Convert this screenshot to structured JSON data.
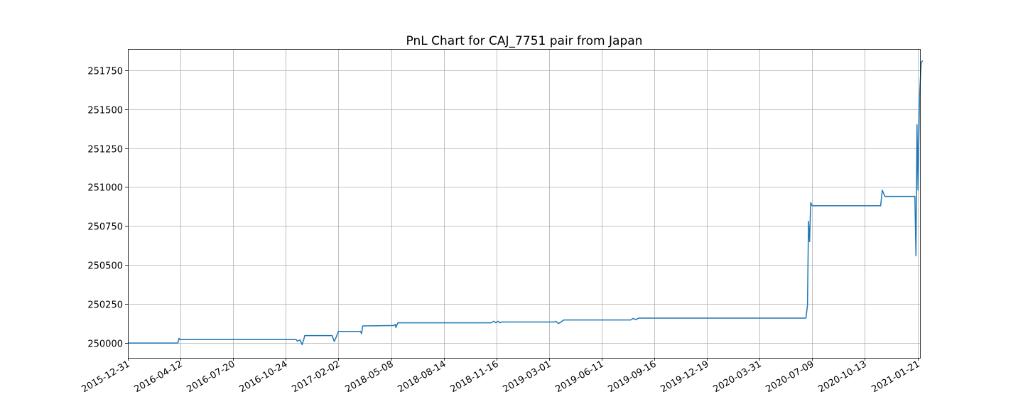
{
  "chart_data": {
    "type": "line",
    "title": "PnL Chart for CAJ_7751 pair from Japan",
    "xlabel": "",
    "ylabel": "",
    "grid": true,
    "xlim": [
      "2015-12-31",
      "2021-02-02"
    ],
    "ylim": [
      249905,
      251885
    ],
    "x_ticks": [
      "2015-12-31",
      "2016-04-12",
      "2016-07-20",
      "2016-10-24",
      "2017-02-02",
      "2018-05-08",
      "2018-08-14",
      "2018-11-16",
      "2019-03-01",
      "2019-06-11",
      "2019-09-16",
      "2019-12-19",
      "2020-03-31",
      "2020-07-09",
      "2020-10-13",
      "2021-01-21"
    ],
    "y_ticks": [
      250000,
      250250,
      250500,
      250750,
      251000,
      251250,
      251500,
      251750
    ],
    "series": [
      {
        "color": "#1f77b4",
        "points": [
          [
            0,
            250000
          ],
          [
            0.95,
            250000
          ],
          [
            0.97,
            250030
          ],
          [
            0.99,
            250022
          ],
          [
            3.2,
            250022
          ],
          [
            3.22,
            250012
          ],
          [
            3.27,
            250020
          ],
          [
            3.31,
            249990
          ],
          [
            3.34,
            250022
          ],
          [
            3.36,
            250048
          ],
          [
            3.88,
            250048
          ],
          [
            3.92,
            250010
          ],
          [
            3.96,
            250040
          ],
          [
            4.0,
            250075
          ],
          [
            4.42,
            250075
          ],
          [
            4.44,
            250060
          ],
          [
            4.46,
            250110
          ],
          [
            5.0,
            250112
          ],
          [
            5.05,
            250112
          ],
          [
            5.08,
            250120
          ],
          [
            5.09,
            250100
          ],
          [
            5.13,
            250130
          ],
          [
            6.9,
            250130
          ],
          [
            6.95,
            250140
          ],
          [
            6.99,
            250130
          ],
          [
            7.03,
            250140
          ],
          [
            7.07,
            250130
          ],
          [
            7.09,
            250135
          ],
          [
            8.1,
            250135
          ],
          [
            8.13,
            250140
          ],
          [
            8.18,
            250125
          ],
          [
            8.23,
            250135
          ],
          [
            8.28,
            250148
          ],
          [
            9.55,
            250148
          ],
          [
            9.6,
            250158
          ],
          [
            9.65,
            250150
          ],
          [
            9.7,
            250160
          ],
          [
            12.85,
            250160
          ],
          [
            12.88,
            250160
          ],
          [
            12.91,
            250240
          ],
          [
            12.93,
            250780
          ],
          [
            12.95,
            250650
          ],
          [
            12.97,
            250900
          ],
          [
            13.0,
            250880
          ],
          [
            14.3,
            250880
          ],
          [
            14.33,
            250980
          ],
          [
            14.38,
            250940
          ],
          [
            14.95,
            250940
          ],
          [
            14.97,
            250560
          ],
          [
            14.99,
            251400
          ],
          [
            15.01,
            250980
          ],
          [
            15.04,
            251600
          ],
          [
            15.07,
            251800
          ],
          [
            15.1,
            251810
          ]
        ]
      }
    ]
  }
}
